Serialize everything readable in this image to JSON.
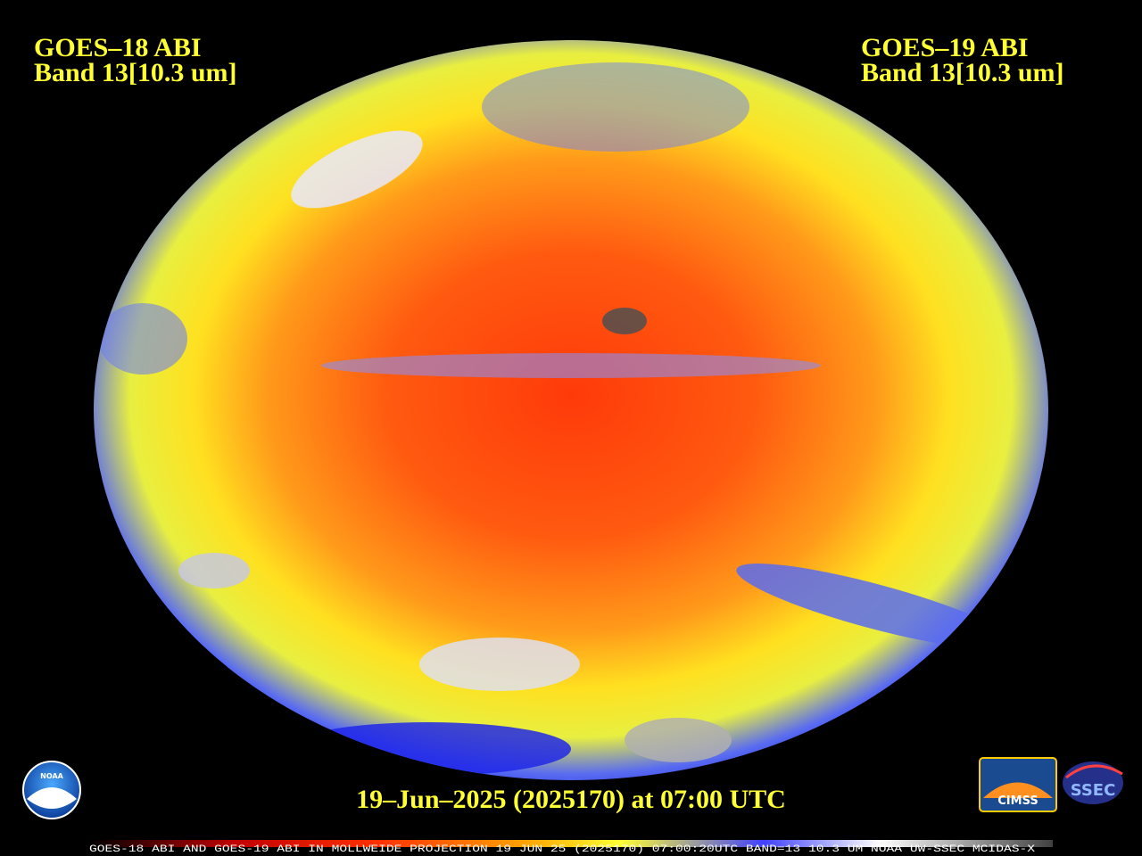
{
  "header": {
    "left": {
      "satellite": "GOES–18 ABI",
      "band": "Band 13[10.3 um]"
    },
    "right": {
      "satellite": "GOES–19 ABI",
      "band": "Band 13[10.3 um]"
    }
  },
  "timestamp": "19–Jun–2025 (2025170) at 07:00 UTC",
  "footer": "GOES-18 ABI AND GOES-19 ABI IN MOLLWEIDE PROJECTION 19 JUN 25 (2025170) 07:00:20UTC BAND=13 10.3 UM NOAA UW-SSEC MCIDAS-X",
  "logos": {
    "noaa": "NOAA",
    "cimss": "CIMSS",
    "ssec": "SSEC"
  }
}
